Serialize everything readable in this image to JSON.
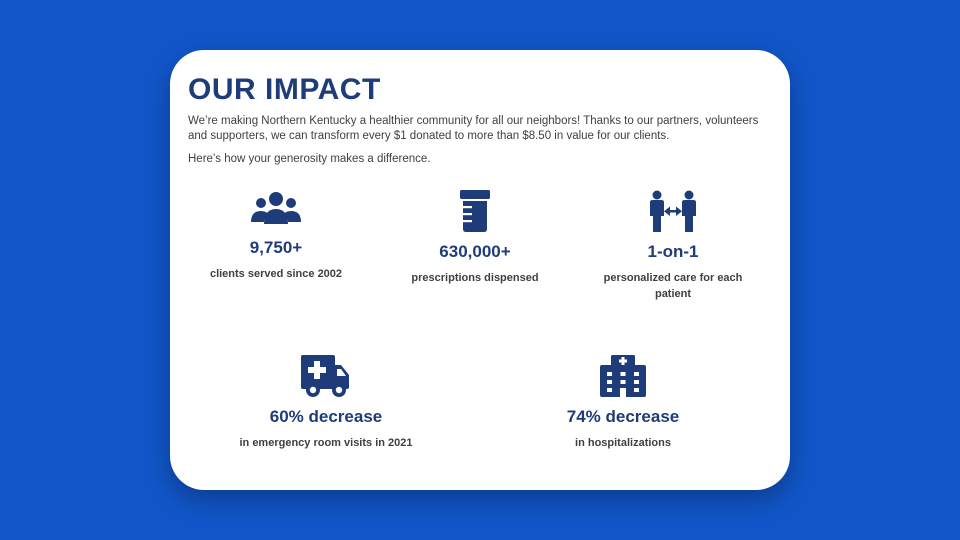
{
  "colors": {
    "background": "#1155c8",
    "card": "#ffffff",
    "accent": "#1f3c7a"
  },
  "impact": {
    "title": "OUR IMPACT",
    "intro": "We’re making Northern Kentucky a healthier community for all our neighbors! Thanks to our partners, volunteers and supporters, we can transform every $1 donated to more than $8.50 in value for our clients.",
    "subtitle": "Here’s how your generosity makes a difference."
  },
  "stats": [
    {
      "icon": "users-icon",
      "value": "9,750+",
      "label": "clients served since 2002"
    },
    {
      "icon": "prescription-bottle-icon",
      "value": "630,000+",
      "label": "prescriptions dispensed"
    },
    {
      "icon": "people-arrows-icon",
      "value": "1-on-1",
      "label": "personalized care for each patient"
    },
    {
      "icon": "ambulance-icon",
      "value": "60% decrease",
      "label": "in emergency room visits in 2021"
    },
    {
      "icon": "hospital-icon",
      "value": "74% decrease",
      "label": "in hospitalizations"
    }
  ]
}
